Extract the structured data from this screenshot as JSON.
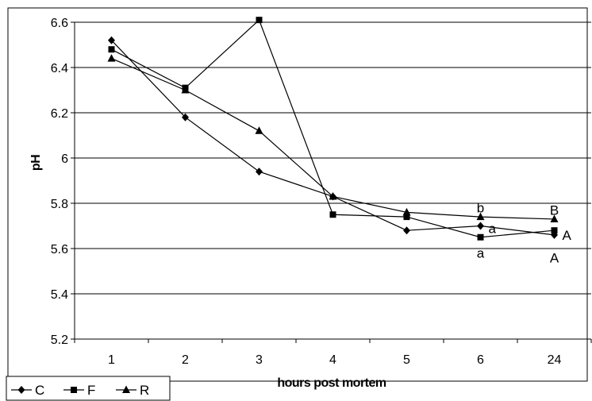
{
  "chart_data": {
    "type": "line",
    "title": "",
    "xlabel": "hours post mortem",
    "ylabel": "pH",
    "categories": [
      "1",
      "2",
      "3",
      "4",
      "5",
      "6",
      "24"
    ],
    "ylim": [
      5.2,
      6.6
    ],
    "yticks": [
      "5.2",
      "5.4",
      "5.6",
      "5.8",
      "6",
      "6.2",
      "6.4",
      "6.6"
    ],
    "grid": "horizontal",
    "legend_position": "bottom-left",
    "series": [
      {
        "name": "C",
        "marker": "diamond",
        "values": [
          6.52,
          6.18,
          5.94,
          5.83,
          5.68,
          5.7,
          5.66
        ]
      },
      {
        "name": "F",
        "marker": "square",
        "values": [
          6.48,
          6.31,
          6.61,
          5.75,
          5.74,
          5.65,
          5.68
        ]
      },
      {
        "name": "R",
        "marker": "triangle",
        "values": [
          6.44,
          6.3,
          6.12,
          5.83,
          5.76,
          5.74,
          5.73
        ]
      }
    ],
    "annotations": [
      {
        "text": "b",
        "category": "6",
        "y": 5.78
      },
      {
        "text": "a",
        "category": "6",
        "y": 5.69
      },
      {
        "text": "a",
        "category": "6",
        "y": 5.58
      },
      {
        "text": "B",
        "category": "24",
        "y": 5.77
      },
      {
        "text": "A",
        "category": "24",
        "y": 5.66
      },
      {
        "text": "A",
        "category": "24",
        "y": 5.56
      }
    ]
  }
}
